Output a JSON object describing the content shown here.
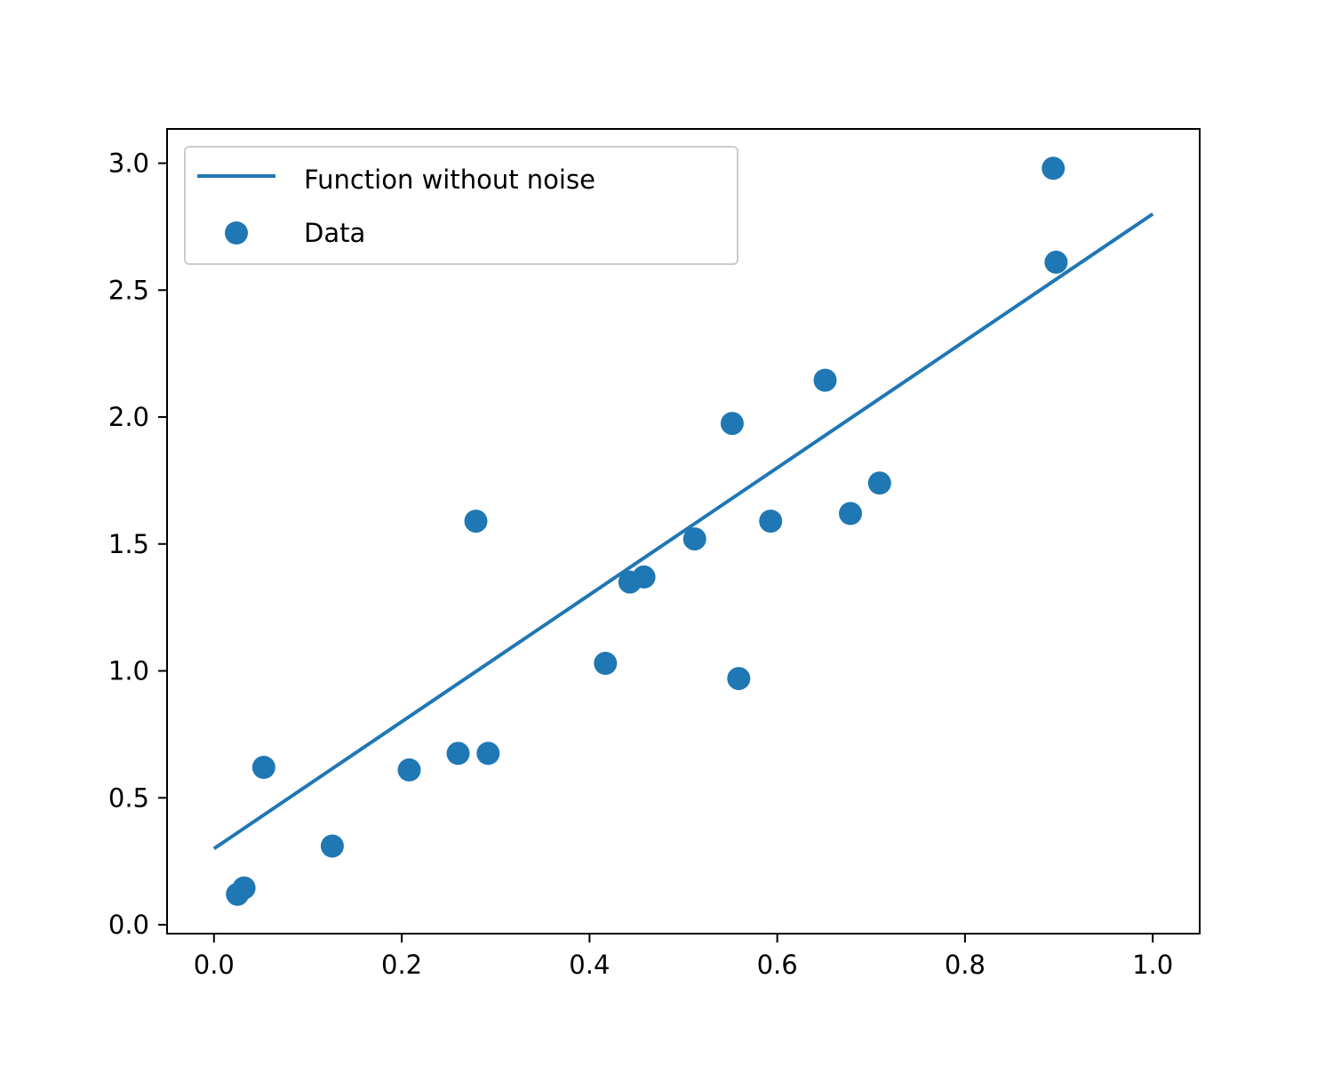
{
  "chart_data": {
    "type": "scatter",
    "title": "",
    "xlabel": "",
    "ylabel": "",
    "xlim": [
      -0.05,
      1.05
    ],
    "ylim": [
      -0.035,
      3.135
    ],
    "grid": false,
    "legend_position": "top-left",
    "x_ticks": [
      {
        "value": 0.0,
        "label": "0.0"
      },
      {
        "value": 0.2,
        "label": "0.2"
      },
      {
        "value": 0.4,
        "label": "0.4"
      },
      {
        "value": 0.6,
        "label": "0.6"
      },
      {
        "value": 0.8,
        "label": "0.8"
      },
      {
        "value": 1.0,
        "label": "1.0"
      }
    ],
    "y_ticks": [
      {
        "value": 0.0,
        "label": "0.0"
      },
      {
        "value": 0.5,
        "label": "0.5"
      },
      {
        "value": 1.0,
        "label": "1.0"
      },
      {
        "value": 1.5,
        "label": "1.5"
      },
      {
        "value": 2.0,
        "label": "2.0"
      },
      {
        "value": 2.5,
        "label": "2.5"
      },
      {
        "value": 3.0,
        "label": "3.0"
      }
    ],
    "series": [
      {
        "name": "Function without noise",
        "kind": "line",
        "color": "#1f77b4",
        "x": [
          0.0,
          1.0
        ],
        "y": [
          0.3,
          2.8
        ]
      },
      {
        "name": "Data",
        "kind": "scatter",
        "color": "#1f77b4",
        "x": [
          0.025,
          0.032,
          0.053,
          0.126,
          0.208,
          0.26,
          0.279,
          0.292,
          0.417,
          0.443,
          0.458,
          0.512,
          0.552,
          0.559,
          0.593,
          0.651,
          0.678,
          0.709,
          0.894,
          0.897
        ],
        "y": [
          0.12,
          0.145,
          0.62,
          0.31,
          0.61,
          0.675,
          1.59,
          0.675,
          1.03,
          1.35,
          1.37,
          1.52,
          1.975,
          0.97,
          1.59,
          2.145,
          1.62,
          1.74,
          2.98,
          2.61
        ]
      }
    ]
  }
}
